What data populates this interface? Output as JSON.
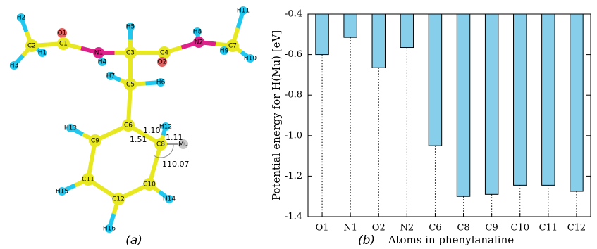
{
  "molecule": {
    "atoms": [
      "O1",
      "C1",
      "C2",
      "H2",
      "H1",
      "H3",
      "N1",
      "H4",
      "C3",
      "H5",
      "C4",
      "O2",
      "N2",
      "H8",
      "C7",
      "H11",
      "H9",
      "H10",
      "C5",
      "H7",
      "H6",
      "C6",
      "C8",
      "H12",
      "Mu",
      "C9",
      "H13",
      "C11",
      "H15",
      "C12",
      "H16",
      "C10",
      "H14"
    ],
    "bond_labels": [
      "1.10",
      "1.51",
      "1.11",
      "110.07"
    ],
    "panel_label": "(a)"
  },
  "chart_data": {
    "type": "bar",
    "panel_label": "(b)",
    "xlabel": "Atoms in phenylanaline",
    "ylabel": "Potential energy for H(Mu) [eV]",
    "categories": [
      "O1",
      "N1",
      "O2",
      "N2",
      "C6",
      "C8",
      "C9",
      "C10",
      "C11",
      "C12"
    ],
    "values": [
      -0.6,
      -0.515,
      -0.665,
      -0.565,
      -1.05,
      -1.3,
      -1.29,
      -1.245,
      -1.245,
      -1.275
    ],
    "color": "#87ceeb",
    "ylim": [
      -1.4,
      -0.4
    ],
    "yticks": [
      -0.4,
      -0.6,
      -0.8,
      {
        "value": -1,
        "label": "-1.0"
      },
      -1.2,
      -1.4
    ]
  }
}
